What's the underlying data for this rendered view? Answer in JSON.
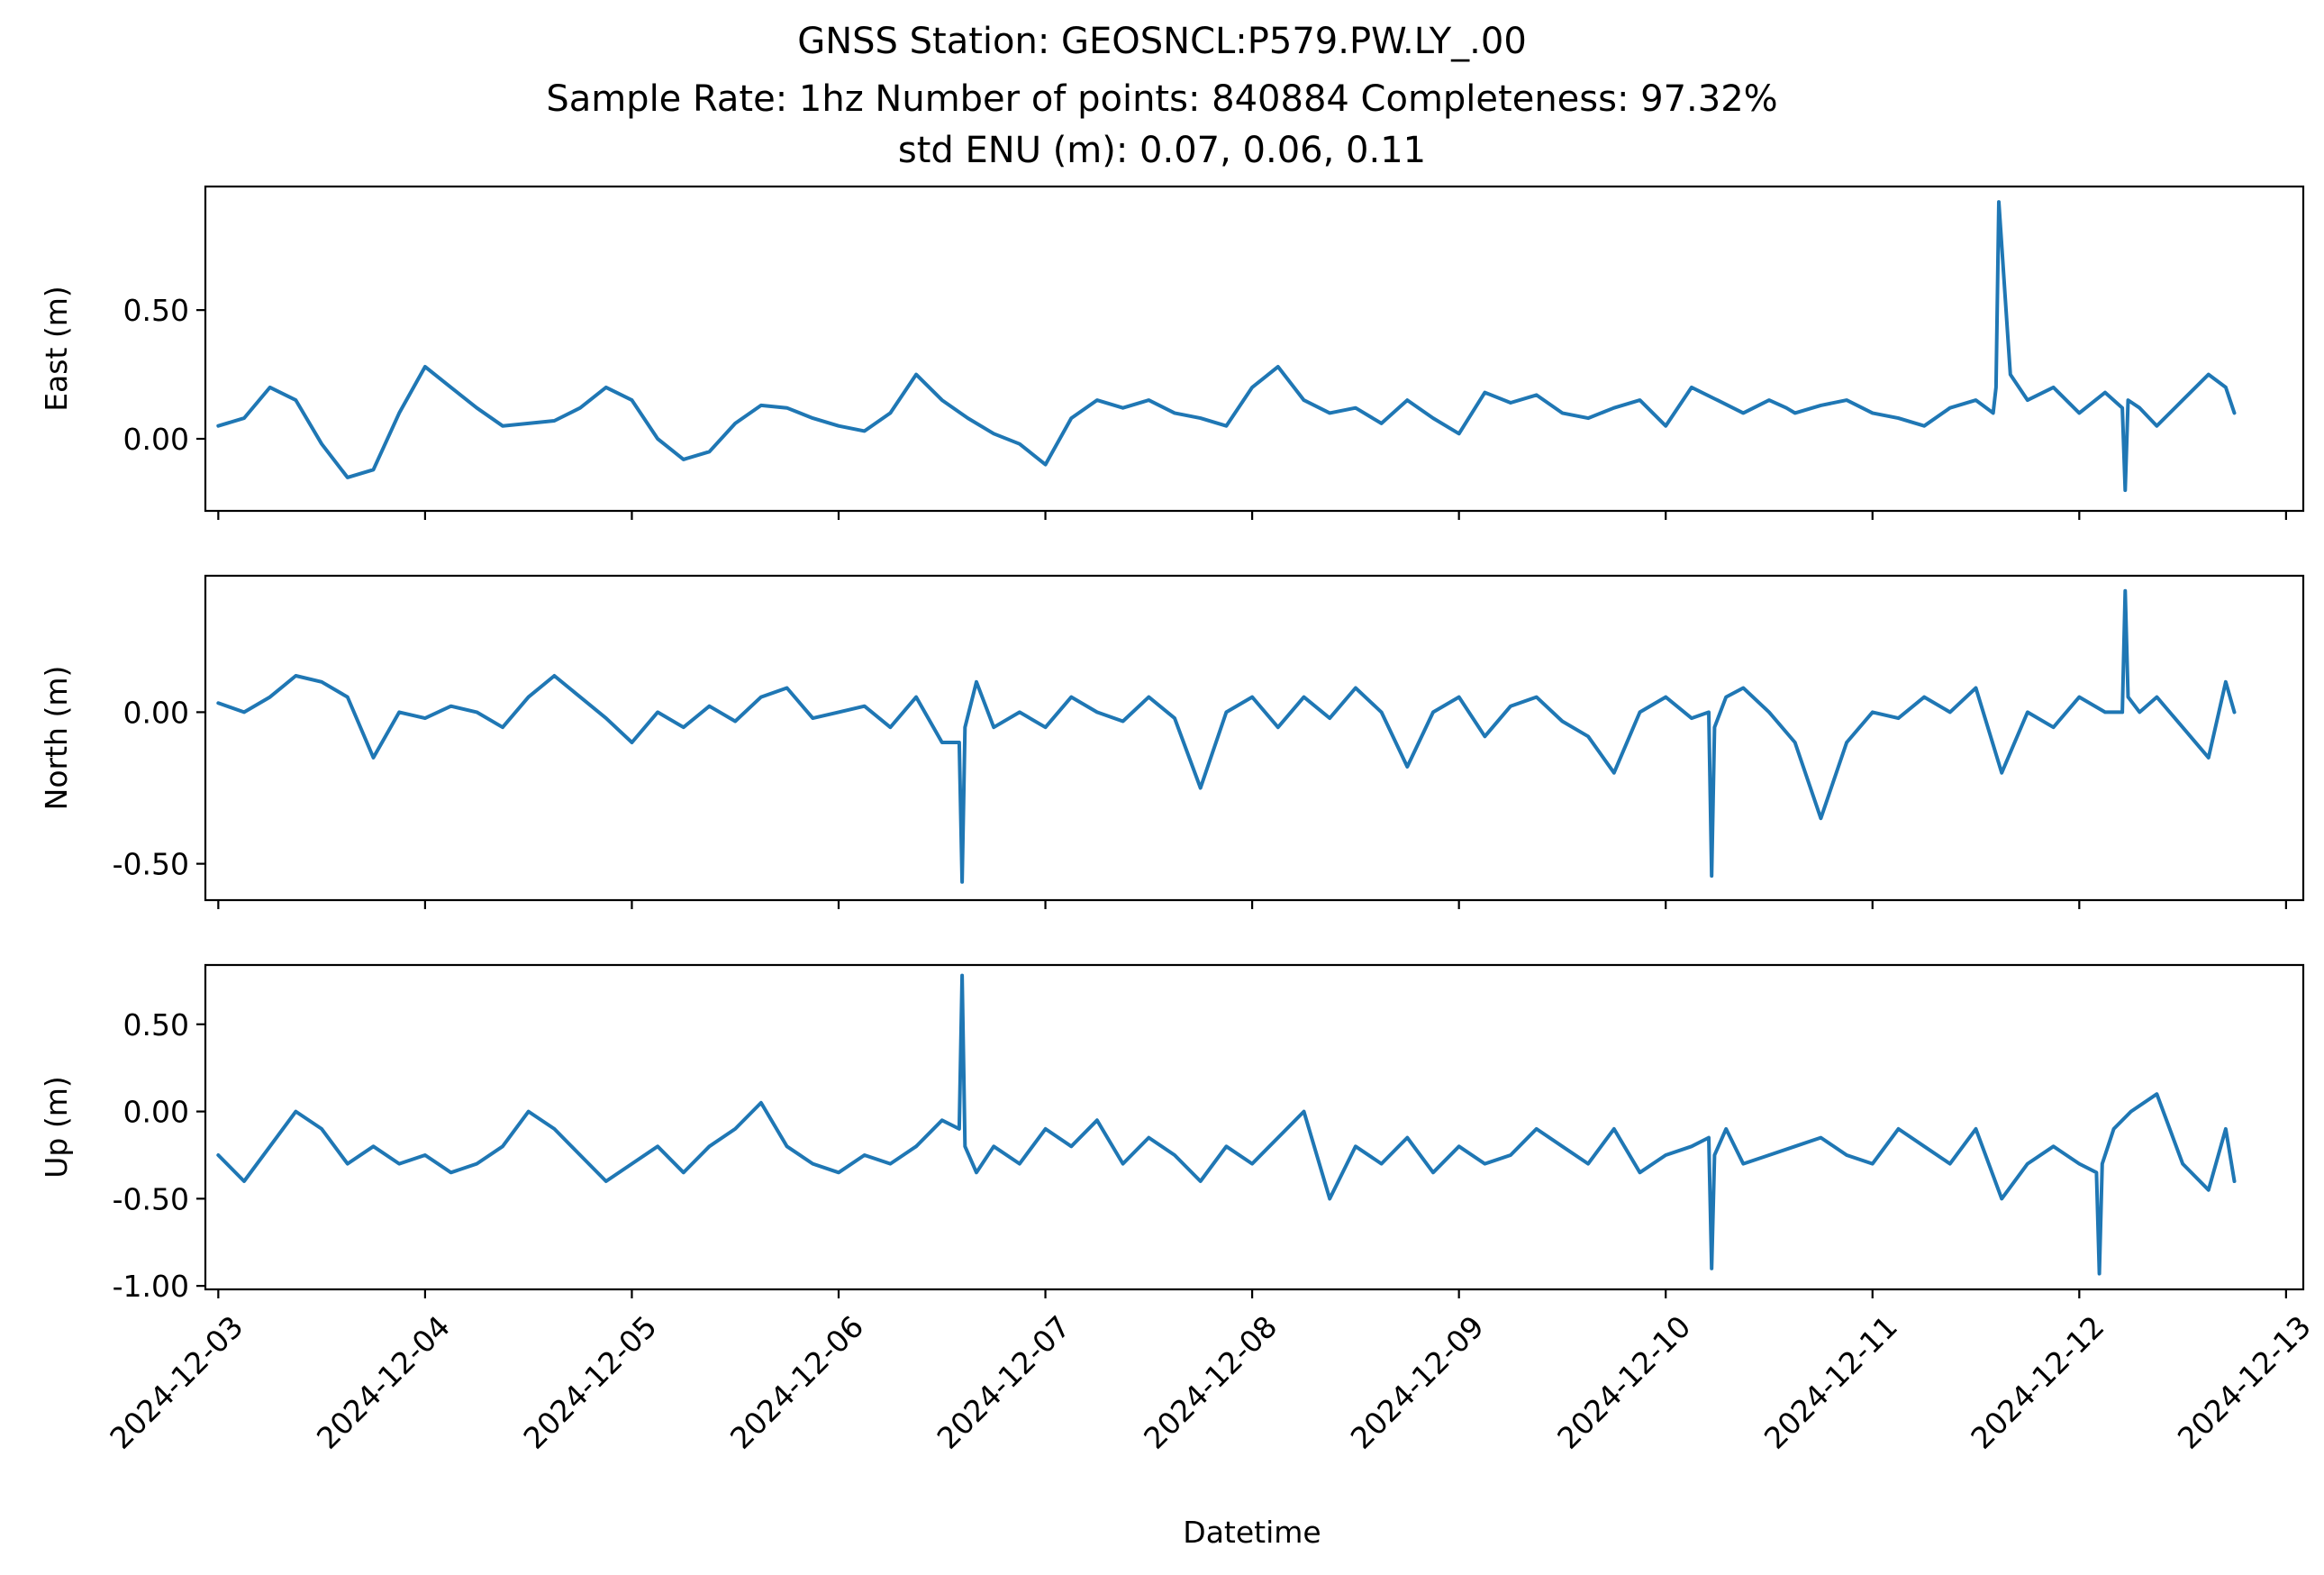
{
  "figure": {
    "title_lines": [
      "GNSS Station: GEOSNCL:P579.PW.LY_.00",
      "Sample Rate: 1hz   Number of points: 840884    Completeness:  97.32%",
      "std ENU (m):  0.07, 0.06, 0.11"
    ],
    "xlabel": "Datetime",
    "line_color": "#1f77b4"
  },
  "chart_data": [
    {
      "type": "line",
      "ylabel": "East (m)",
      "xlim": [
        "2024-12-02T22:30",
        "2024-12-13T02:00"
      ],
      "ylim": [
        -0.28,
        0.98
      ],
      "yticks": [
        0.0,
        0.5
      ],
      "ytick_labels": [
        "0.00",
        "0.50"
      ],
      "xticks": [
        "2024-12-03",
        "2024-12-04",
        "2024-12-05",
        "2024-12-06",
        "2024-12-07",
        "2024-12-08",
        "2024-12-09",
        "2024-12-10",
        "2024-12-11",
        "2024-12-12",
        "2024-12-13"
      ],
      "xtick_labels": [],
      "grid": false,
      "x": [
        "2024-12-03T00:00",
        "2024-12-03T03:00",
        "2024-12-03T06:00",
        "2024-12-03T09:00",
        "2024-12-03T12:00",
        "2024-12-03T15:00",
        "2024-12-03T18:00",
        "2024-12-03T21:00",
        "2024-12-04T00:00",
        "2024-12-04T03:00",
        "2024-12-04T06:00",
        "2024-12-04T09:00",
        "2024-12-04T12:00",
        "2024-12-04T15:00",
        "2024-12-04T18:00",
        "2024-12-04T21:00",
        "2024-12-05T00:00",
        "2024-12-05T03:00",
        "2024-12-05T06:00",
        "2024-12-05T09:00",
        "2024-12-05T12:00",
        "2024-12-05T15:00",
        "2024-12-05T18:00",
        "2024-12-05T21:00",
        "2024-12-06T00:00",
        "2024-12-06T03:00",
        "2024-12-06T06:00",
        "2024-12-06T09:00",
        "2024-12-06T12:00",
        "2024-12-06T15:00",
        "2024-12-06T18:00",
        "2024-12-06T21:00",
        "2024-12-07T00:00",
        "2024-12-07T03:00",
        "2024-12-07T06:00",
        "2024-12-07T09:00",
        "2024-12-07T12:00",
        "2024-12-07T15:00",
        "2024-12-07T18:00",
        "2024-12-07T21:00",
        "2024-12-08T00:00",
        "2024-12-08T03:00",
        "2024-12-08T06:00",
        "2024-12-08T09:00",
        "2024-12-08T12:00",
        "2024-12-08T15:00",
        "2024-12-08T18:00",
        "2024-12-08T21:00",
        "2024-12-09T00:00",
        "2024-12-09T03:00",
        "2024-12-09T06:00",
        "2024-12-09T09:00",
        "2024-12-09T12:00",
        "2024-12-09T15:00",
        "2024-12-09T18:00",
        "2024-12-09T21:00",
        "2024-12-10T00:00",
        "2024-12-10T03:00",
        "2024-12-10T06:00",
        "2024-12-10T09:00",
        "2024-12-10T12:00",
        "2024-12-10T14:00",
        "2024-12-10T15:00",
        "2024-12-10T18:00",
        "2024-12-10T21:00",
        "2024-12-11T00:00",
        "2024-12-11T03:00",
        "2024-12-11T06:00",
        "2024-12-11T09:00",
        "2024-12-11T12:00",
        "2024-12-11T14:00",
        "2024-12-11T14:20",
        "2024-12-11T14:40",
        "2024-12-11T16:00",
        "2024-12-11T18:00",
        "2024-12-11T21:00",
        "2024-12-12T00:00",
        "2024-12-12T03:00",
        "2024-12-12T05:00",
        "2024-12-12T05:20",
        "2024-12-12T05:40",
        "2024-12-12T07:00",
        "2024-12-12T09:00",
        "2024-12-12T12:00",
        "2024-12-12T15:00",
        "2024-12-12T17:00",
        "2024-12-12T18:00"
      ],
      "series": [
        {
          "values": [
            0.05,
            0.08,
            0.2,
            0.15,
            -0.02,
            -0.15,
            -0.12,
            0.1,
            0.28,
            0.2,
            0.12,
            0.05,
            0.06,
            0.07,
            0.12,
            0.2,
            0.15,
            0.0,
            -0.08,
            -0.05,
            0.06,
            0.13,
            0.12,
            0.08,
            0.05,
            0.03,
            0.1,
            0.25,
            0.15,
            0.08,
            0.02,
            -0.02,
            -0.1,
            0.08,
            0.15,
            0.12,
            0.15,
            0.1,
            0.08,
            0.05,
            0.2,
            0.28,
            0.15,
            0.1,
            0.12,
            0.06,
            0.15,
            0.08,
            0.02,
            0.18,
            0.14,
            0.17,
            0.1,
            0.08,
            0.12,
            0.15,
            0.05,
            0.2,
            0.15,
            0.1,
            0.15,
            0.12,
            0.1,
            0.13,
            0.15,
            0.1,
            0.08,
            0.05,
            0.12,
            0.15,
            0.1,
            0.2,
            0.92,
            0.25,
            0.15,
            0.2,
            0.1,
            0.18,
            0.12,
            -0.2,
            0.15,
            0.12,
            0.05,
            0.15,
            0.25,
            0.2,
            0.1
          ]
        }
      ]
    },
    {
      "type": "line",
      "ylabel": "North (m)",
      "xlim": [
        "2024-12-02T22:30",
        "2024-12-13T02:00"
      ],
      "ylim": [
        -0.62,
        0.45
      ],
      "yticks": [
        -0.5,
        0.0
      ],
      "ytick_labels": [
        "-0.50",
        "0.00"
      ],
      "xticks": [
        "2024-12-03",
        "2024-12-04",
        "2024-12-05",
        "2024-12-06",
        "2024-12-07",
        "2024-12-08",
        "2024-12-09",
        "2024-12-10",
        "2024-12-11",
        "2024-12-12",
        "2024-12-13"
      ],
      "xtick_labels": [],
      "grid": false,
      "x": [
        "2024-12-03T00:00",
        "2024-12-03T03:00",
        "2024-12-03T06:00",
        "2024-12-03T09:00",
        "2024-12-03T12:00",
        "2024-12-03T15:00",
        "2024-12-03T18:00",
        "2024-12-03T21:00",
        "2024-12-04T00:00",
        "2024-12-04T03:00",
        "2024-12-04T06:00",
        "2024-12-04T09:00",
        "2024-12-04T12:00",
        "2024-12-04T15:00",
        "2024-12-04T18:00",
        "2024-12-04T21:00",
        "2024-12-05T00:00",
        "2024-12-05T03:00",
        "2024-12-05T06:00",
        "2024-12-05T09:00",
        "2024-12-05T12:00",
        "2024-12-05T15:00",
        "2024-12-05T18:00",
        "2024-12-05T21:00",
        "2024-12-06T00:00",
        "2024-12-06T03:00",
        "2024-12-06T06:00",
        "2024-12-06T09:00",
        "2024-12-06T12:00",
        "2024-12-06T14:00",
        "2024-12-06T14:20",
        "2024-12-06T14:40",
        "2024-12-06T16:00",
        "2024-12-06T18:00",
        "2024-12-06T21:00",
        "2024-12-07T00:00",
        "2024-12-07T03:00",
        "2024-12-07T06:00",
        "2024-12-07T09:00",
        "2024-12-07T12:00",
        "2024-12-07T15:00",
        "2024-12-07T18:00",
        "2024-12-07T21:00",
        "2024-12-08T00:00",
        "2024-12-08T03:00",
        "2024-12-08T06:00",
        "2024-12-08T09:00",
        "2024-12-08T12:00",
        "2024-12-08T15:00",
        "2024-12-08T18:00",
        "2024-12-08T21:00",
        "2024-12-09T00:00",
        "2024-12-09T03:00",
        "2024-12-09T06:00",
        "2024-12-09T09:00",
        "2024-12-09T12:00",
        "2024-12-09T15:00",
        "2024-12-09T18:00",
        "2024-12-09T21:00",
        "2024-12-10T00:00",
        "2024-12-10T03:00",
        "2024-12-10T05:00",
        "2024-12-10T05:20",
        "2024-12-10T05:40",
        "2024-12-10T07:00",
        "2024-12-10T09:00",
        "2024-12-10T12:00",
        "2024-12-10T15:00",
        "2024-12-10T18:00",
        "2024-12-10T21:00",
        "2024-12-11T00:00",
        "2024-12-11T03:00",
        "2024-12-11T06:00",
        "2024-12-11T09:00",
        "2024-12-11T12:00",
        "2024-12-11T15:00",
        "2024-12-11T18:00",
        "2024-12-11T21:00",
        "2024-12-12T00:00",
        "2024-12-12T03:00",
        "2024-12-12T05:00",
        "2024-12-12T05:20",
        "2024-12-12T05:40",
        "2024-12-12T07:00",
        "2024-12-12T09:00",
        "2024-12-12T12:00",
        "2024-12-12T15:00",
        "2024-12-12T17:00",
        "2024-12-12T18:00"
      ],
      "series": [
        {
          "values": [
            0.03,
            0.0,
            0.05,
            0.12,
            0.1,
            0.05,
            -0.15,
            0.0,
            -0.02,
            0.02,
            0.0,
            -0.05,
            0.05,
            0.12,
            0.05,
            -0.02,
            -0.1,
            0.0,
            -0.05,
            0.02,
            -0.03,
            0.05,
            0.08,
            -0.02,
            0.0,
            0.02,
            -0.05,
            0.05,
            -0.1,
            -0.1,
            -0.56,
            -0.05,
            0.1,
            -0.05,
            0.0,
            -0.05,
            0.05,
            0.0,
            -0.03,
            0.05,
            -0.02,
            -0.25,
            0.0,
            0.05,
            -0.05,
            0.05,
            -0.02,
            0.08,
            0.0,
            -0.18,
            0.0,
            0.05,
            -0.08,
            0.02,
            0.05,
            -0.03,
            -0.08,
            -0.2,
            0.0,
            0.05,
            -0.02,
            0.0,
            -0.54,
            -0.05,
            0.05,
            0.08,
            0.0,
            -0.1,
            -0.35,
            -0.1,
            0.0,
            -0.02,
            0.05,
            0.0,
            0.08,
            -0.2,
            0.0,
            -0.05,
            0.05,
            0.0,
            0.0,
            0.4,
            0.05,
            0.0,
            0.05,
            -0.05,
            -0.15,
            0.1,
            0.0
          ]
        }
      ]
    },
    {
      "type": "line",
      "ylabel": "Up (m)",
      "xlim": [
        "2024-12-02T22:30",
        "2024-12-13T02:00"
      ],
      "ylim": [
        -1.02,
        0.84
      ],
      "yticks": [
        -1.0,
        -0.5,
        0.0,
        0.5
      ],
      "ytick_labels": [
        "-1.00",
        "-0.50",
        "0.00",
        "0.50"
      ],
      "xticks": [
        "2024-12-03",
        "2024-12-04",
        "2024-12-05",
        "2024-12-06",
        "2024-12-07",
        "2024-12-08",
        "2024-12-09",
        "2024-12-10",
        "2024-12-11",
        "2024-12-12",
        "2024-12-13"
      ],
      "xtick_labels": [
        "2024-12-03",
        "2024-12-04",
        "2024-12-05",
        "2024-12-06",
        "2024-12-07",
        "2024-12-08",
        "2024-12-09",
        "2024-12-10",
        "2024-12-11",
        "2024-12-12",
        "2024-12-13"
      ],
      "grid": false,
      "x": [
        "2024-12-03T00:00",
        "2024-12-03T03:00",
        "2024-12-03T06:00",
        "2024-12-03T09:00",
        "2024-12-03T12:00",
        "2024-12-03T15:00",
        "2024-12-03T18:00",
        "2024-12-03T21:00",
        "2024-12-04T00:00",
        "2024-12-04T03:00",
        "2024-12-04T06:00",
        "2024-12-04T09:00",
        "2024-12-04T12:00",
        "2024-12-04T15:00",
        "2024-12-04T18:00",
        "2024-12-04T21:00",
        "2024-12-05T00:00",
        "2024-12-05T03:00",
        "2024-12-05T06:00",
        "2024-12-05T09:00",
        "2024-12-05T12:00",
        "2024-12-05T15:00",
        "2024-12-05T18:00",
        "2024-12-05T21:00",
        "2024-12-06T00:00",
        "2024-12-06T03:00",
        "2024-12-06T06:00",
        "2024-12-06T09:00",
        "2024-12-06T12:00",
        "2024-12-06T14:00",
        "2024-12-06T14:20",
        "2024-12-06T14:40",
        "2024-12-06T16:00",
        "2024-12-06T18:00",
        "2024-12-06T21:00",
        "2024-12-07T00:00",
        "2024-12-07T03:00",
        "2024-12-07T06:00",
        "2024-12-07T09:00",
        "2024-12-07T12:00",
        "2024-12-07T15:00",
        "2024-12-07T18:00",
        "2024-12-07T21:00",
        "2024-12-08T00:00",
        "2024-12-08T03:00",
        "2024-12-08T06:00",
        "2024-12-08T09:00",
        "2024-12-08T12:00",
        "2024-12-08T15:00",
        "2024-12-08T18:00",
        "2024-12-08T21:00",
        "2024-12-09T00:00",
        "2024-12-09T03:00",
        "2024-12-09T06:00",
        "2024-12-09T09:00",
        "2024-12-09T12:00",
        "2024-12-09T15:00",
        "2024-12-09T18:00",
        "2024-12-09T21:00",
        "2024-12-10T00:00",
        "2024-12-10T03:00",
        "2024-12-10T05:00",
        "2024-12-10T05:20",
        "2024-12-10T05:40",
        "2024-12-10T07:00",
        "2024-12-10T09:00",
        "2024-12-10T12:00",
        "2024-12-10T15:00",
        "2024-12-10T18:00",
        "2024-12-10T21:00",
        "2024-12-11T00:00",
        "2024-12-11T03:00",
        "2024-12-11T06:00",
        "2024-12-11T09:00",
        "2024-12-11T12:00",
        "2024-12-11T15:00",
        "2024-12-11T18:00",
        "2024-12-11T21:00",
        "2024-12-12T00:00",
        "2024-12-12T02:00",
        "2024-12-12T02:20",
        "2024-12-12T02:40",
        "2024-12-12T04:00",
        "2024-12-12T06:00",
        "2024-12-12T09:00",
        "2024-12-12T12:00",
        "2024-12-12T15:00",
        "2024-12-12T17:00",
        "2024-12-12T18:00"
      ],
      "series": [
        {
          "values": [
            -0.25,
            -0.4,
            -0.2,
            0.0,
            -0.1,
            -0.3,
            -0.2,
            -0.3,
            -0.25,
            -0.35,
            -0.3,
            -0.2,
            0.0,
            -0.1,
            -0.25,
            -0.4,
            -0.3,
            -0.2,
            -0.35,
            -0.2,
            -0.1,
            0.05,
            -0.2,
            -0.3,
            -0.35,
            -0.25,
            -0.3,
            -0.2,
            -0.05,
            -0.1,
            0.78,
            -0.2,
            -0.35,
            -0.2,
            -0.3,
            -0.1,
            -0.2,
            -0.05,
            -0.3,
            -0.15,
            -0.25,
            -0.4,
            -0.2,
            -0.3,
            -0.15,
            0.0,
            -0.5,
            -0.2,
            -0.3,
            -0.15,
            -0.35,
            -0.2,
            -0.3,
            -0.25,
            -0.1,
            -0.2,
            -0.3,
            -0.1,
            -0.35,
            -0.25,
            -0.2,
            -0.15,
            -0.9,
            -0.25,
            -0.1,
            -0.3,
            -0.25,
            -0.2,
            -0.15,
            -0.25,
            -0.3,
            -0.1,
            -0.2,
            -0.3,
            -0.1,
            -0.5,
            -0.3,
            -0.2,
            -0.3,
            -0.35,
            -0.93,
            -0.3,
            -0.1,
            0.0,
            0.1,
            -0.3,
            -0.45,
            -0.1,
            -0.4
          ]
        }
      ]
    }
  ]
}
